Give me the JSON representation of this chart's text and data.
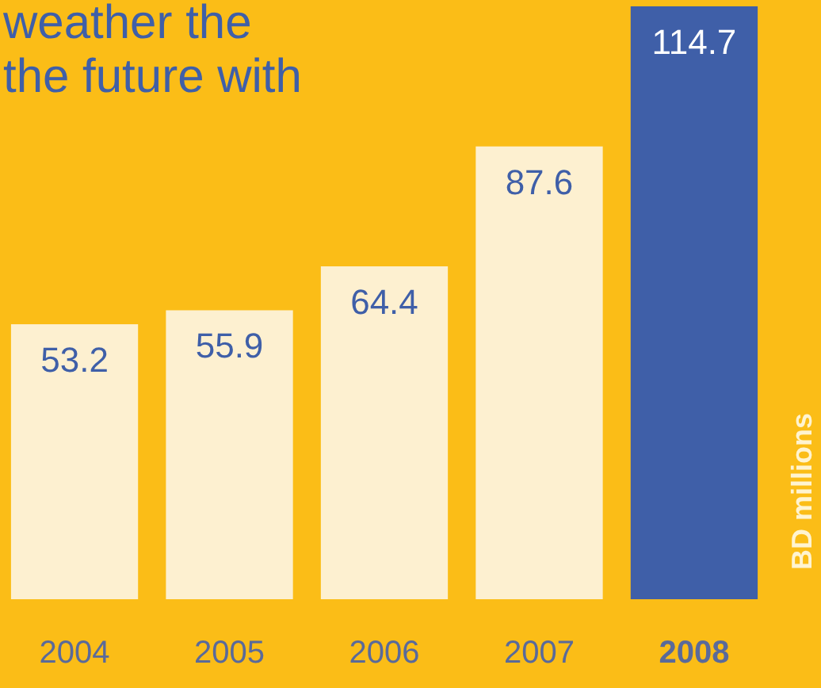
{
  "chart_data": {
    "type": "bar",
    "title": "weather the\nthe future with",
    "ylabel": "BD millions",
    "categories": [
      "2004",
      "2005",
      "2006",
      "2007",
      "2008"
    ],
    "values": [
      53.2,
      55.9,
      64.4,
      87.6,
      114.7
    ],
    "colors": [
      "#fdf0d0",
      "#fdf0d0",
      "#fdf0d0",
      "#fdf0d0",
      "#3f5fa8"
    ],
    "data_labels": true
  }
}
